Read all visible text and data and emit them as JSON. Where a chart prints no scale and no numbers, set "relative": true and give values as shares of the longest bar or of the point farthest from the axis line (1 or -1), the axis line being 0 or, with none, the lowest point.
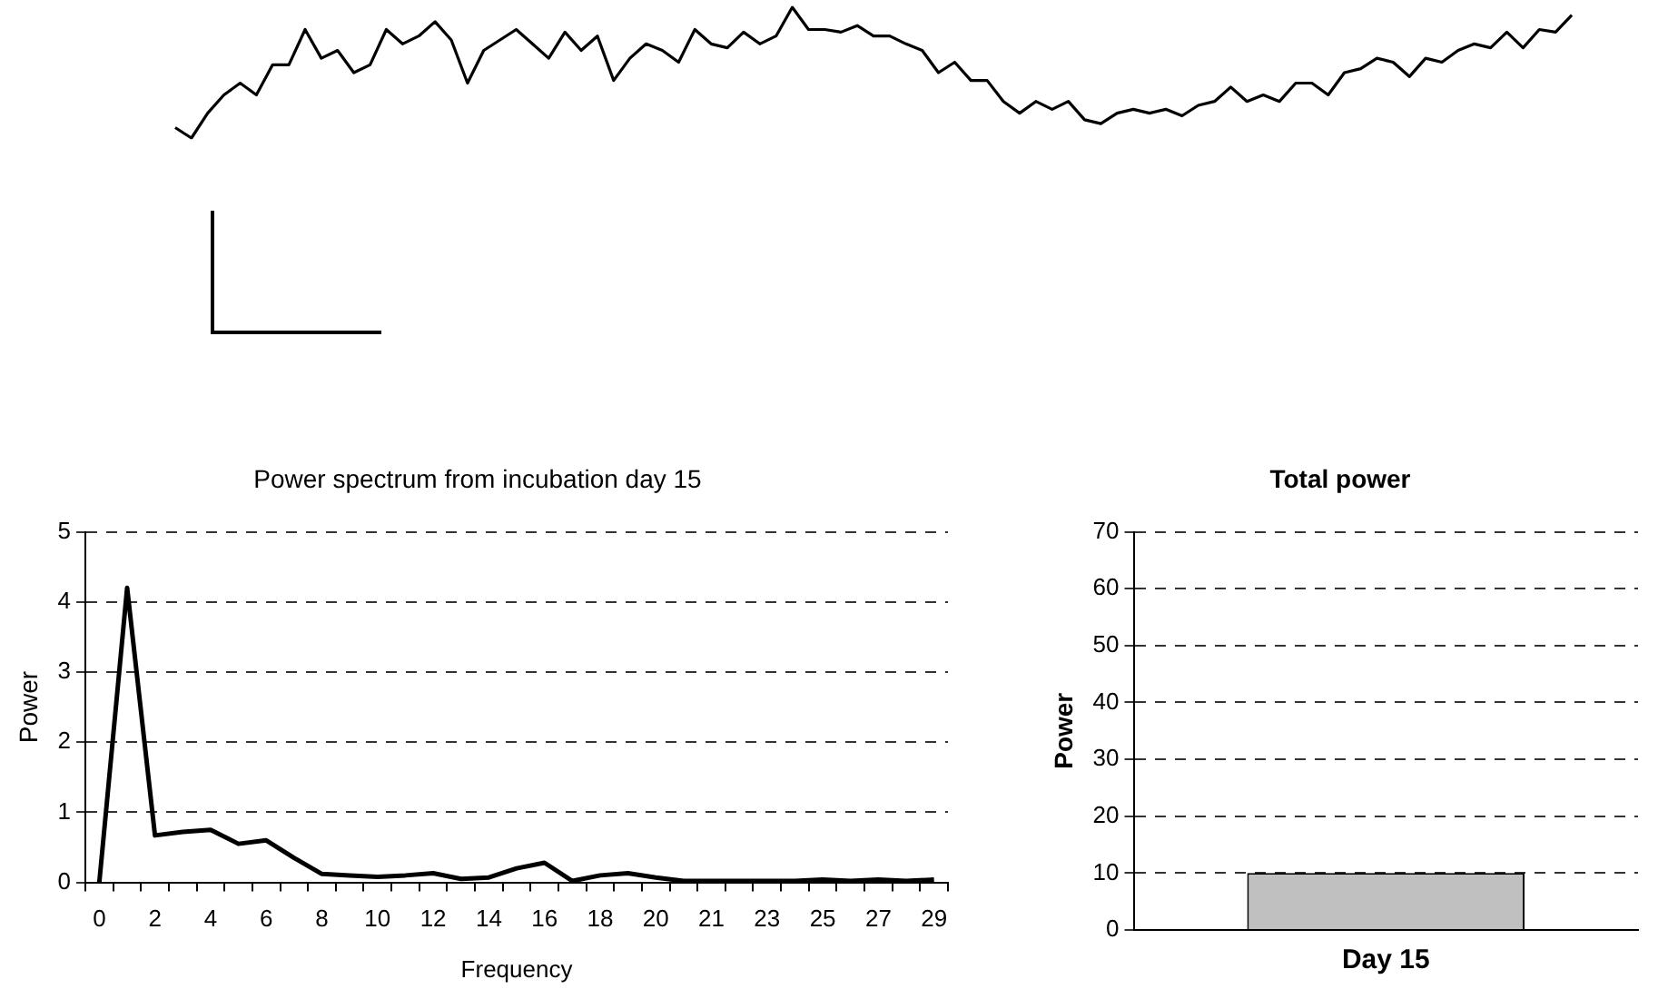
{
  "chart_data": [
    {
      "type": "line",
      "relative": true,
      "marker": "none",
      "legend": false,
      "grid": false,
      "categories": [
        null,
        null,
        null,
        null,
        null,
        null,
        null,
        null,
        null,
        null,
        null,
        null,
        null,
        null,
        null,
        null,
        null,
        null,
        null,
        null,
        null,
        null,
        null,
        null,
        null,
        null,
        null,
        null,
        null,
        null,
        null,
        null,
        null,
        null,
        null,
        null,
        null,
        null,
        null,
        null,
        null,
        null,
        null,
        null,
        null,
        null,
        null,
        null,
        null,
        null,
        null,
        null,
        null,
        null,
        null,
        null,
        null,
        null,
        null,
        null,
        null,
        null,
        null,
        null,
        null,
        null,
        null,
        null,
        null,
        null,
        null,
        null,
        null,
        null,
        null,
        null,
        null,
        null,
        null,
        null,
        null,
        null,
        null,
        null,
        null,
        null,
        null
      ],
      "series": [
        {
          "color": "#000000",
          "values": [
            0.08,
            0,
            0.19,
            0.33,
            0.42,
            0.33,
            0.56,
            0.56,
            0.83,
            0.61,
            0.67,
            0.5,
            0.56,
            0.83,
            0.72,
            0.78,
            0.89,
            0.75,
            0.42,
            0.67,
            0.75,
            0.83,
            0.72,
            0.61,
            0.81,
            0.67,
            0.78,
            0.44,
            0.61,
            0.72,
            0.67,
            0.58,
            0.83,
            0.72,
            0.69,
            0.81,
            0.72,
            0.78,
            1,
            0.83,
            0.83,
            0.81,
            0.86,
            0.78,
            0.78,
            0.72,
            0.67,
            0.5,
            0.58,
            0.44,
            0.44,
            0.28,
            0.19,
            0.28,
            0.22,
            0.28,
            0.14,
            0.11,
            0.19,
            0.22,
            0.19,
            0.22,
            0.17,
            0.25,
            0.28,
            0.39,
            0.28,
            0.33,
            0.28,
            0.42,
            0.42,
            0.33,
            0.5,
            0.53,
            0.61,
            0.58,
            0.47,
            0.61,
            0.58,
            0.67,
            0.72,
            0.69,
            0.81,
            0.69,
            0.83,
            0.81,
            0.94
          ]
        }
      ]
    },
    {
      "type": "line",
      "title": "Power spectrum from incubation day 15",
      "xlabel": "Frequency",
      "ylabel": "Power",
      "marker": "none",
      "legend": false,
      "grid": "y",
      "categories": [
        "0",
        null,
        "2",
        null,
        "4",
        null,
        "6",
        null,
        "8",
        null,
        "10",
        null,
        "12",
        null,
        "14",
        null,
        "16",
        null,
        "18",
        null,
        "20",
        null,
        "21",
        null,
        "23",
        null,
        "25",
        null,
        "27",
        null,
        "29"
      ],
      "ylim": [
        0,
        5
      ],
      "yticks": [
        0,
        1,
        2,
        3,
        4,
        5
      ],
      "series": [
        {
          "color": "#000000",
          "values": [
            0,
            4.2,
            0.67,
            0.72,
            0.75,
            0.55,
            0.6,
            0.35,
            0.12,
            0.1,
            0.08,
            0.1,
            0.13,
            0.05,
            0.07,
            0.2,
            0.28,
            0.02,
            0.1,
            0.13,
            0.07,
            0.02,
            0.02,
            0.02,
            0.02,
            0.02,
            0.04,
            0.02,
            0.04,
            0.02,
            0.04
          ]
        }
      ]
    },
    {
      "type": "bar",
      "title": "Total power",
      "ylabel": "Power",
      "legend": false,
      "grid": "y",
      "categories": [
        "Day 15"
      ],
      "ylim": [
        0,
        70
      ],
      "yticks": [
        0,
        10,
        20,
        30,
        40,
        50,
        60,
        70
      ],
      "series": [
        {
          "color": "#c0c0c0",
          "values": [
            10
          ]
        }
      ]
    }
  ]
}
